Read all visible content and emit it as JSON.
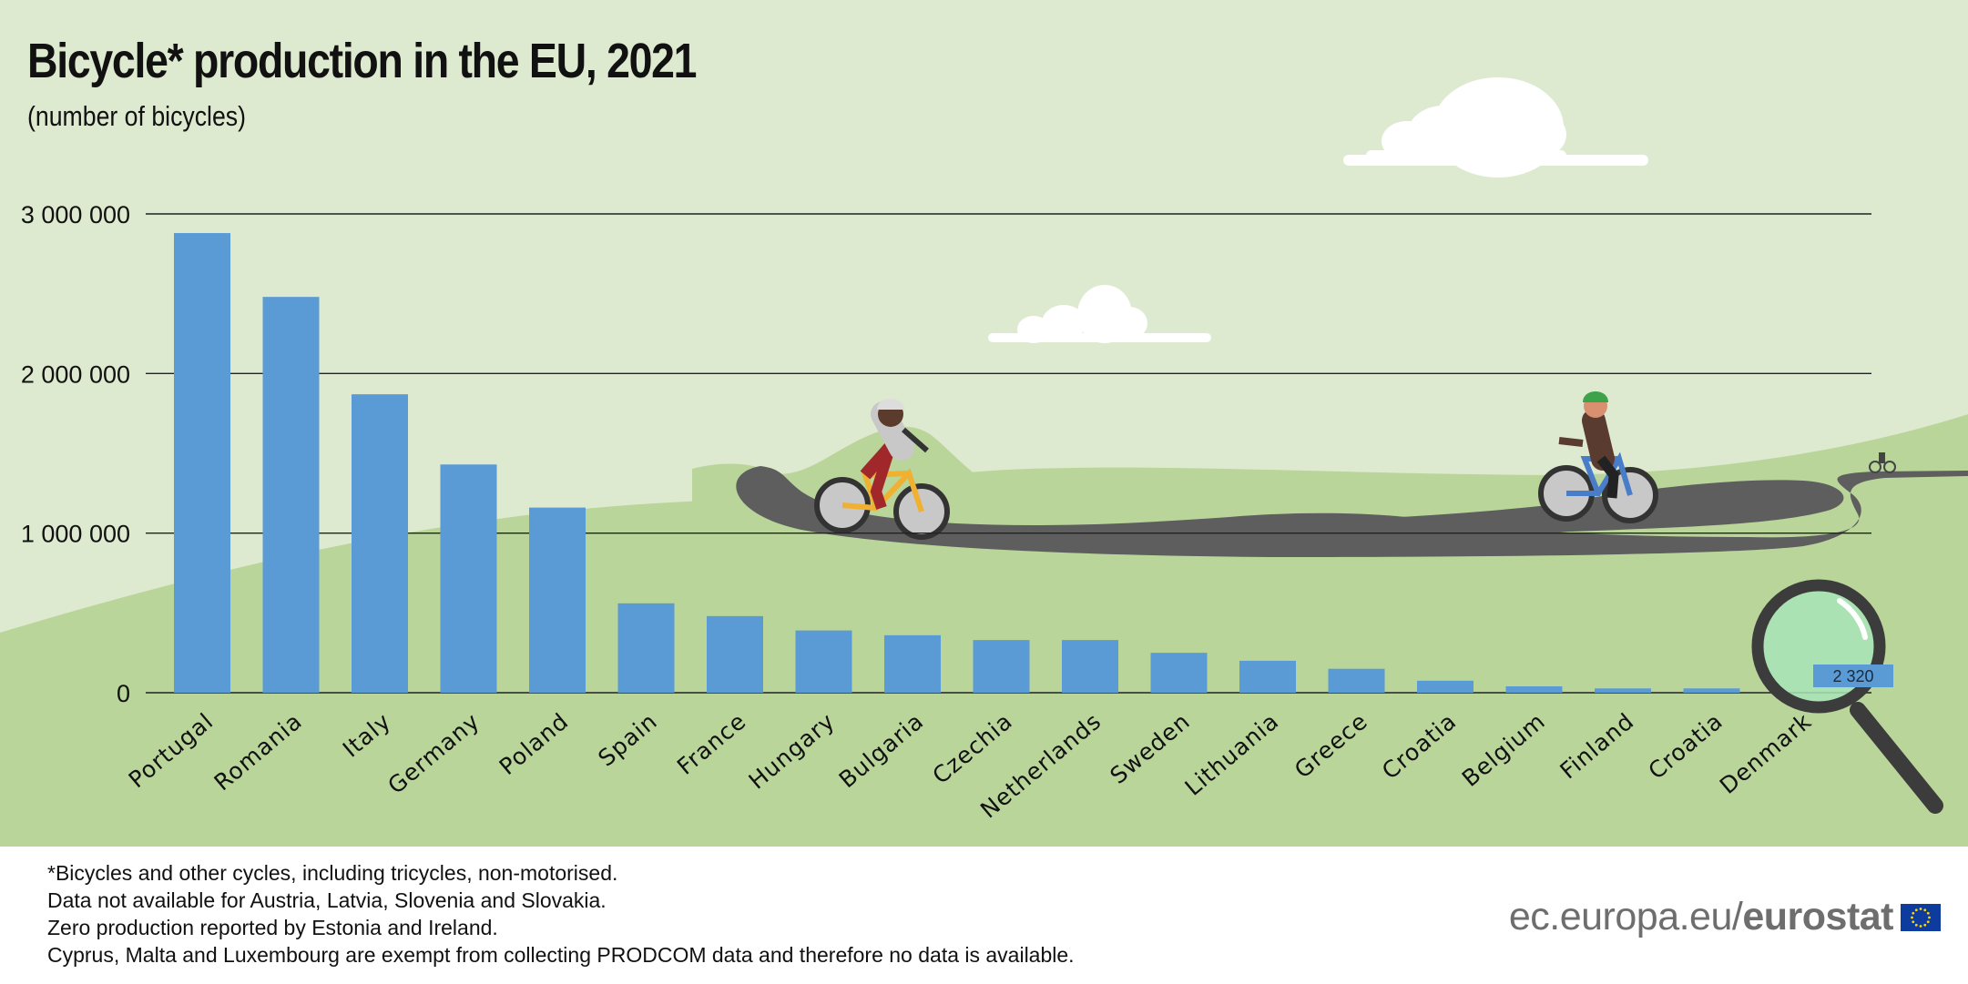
{
  "title": "Bicycle* production in the EU, 2021",
  "subtitle": "(number of bicycles)",
  "footnotes": [
    "*Bicycles and other cycles, including tricycles, non-motorised.",
    "Data not available for Austria, Latvia, Slovenia and Slovakia.",
    "Zero production reported by Estonia and Ireland.",
    "Cyprus, Malta and Luxembourg are exempt from collecting PRODCOM data and therefore no data is available."
  ],
  "brand": {
    "url": "ec.europa.eu/",
    "name": "eurostat"
  },
  "colors": {
    "bar": "#5b9bd5",
    "background_light": "#deeacf",
    "background_hill": "#b9d59a",
    "road": "#5e5e5e",
    "lens": "#a8e4b9"
  },
  "icons": [
    "cloud-icon",
    "cyclist-icon",
    "magnifying-glass-icon",
    "eu-flag-icon"
  ],
  "chart_data": {
    "type": "bar",
    "title": "Bicycle* production in the EU, 2021",
    "subtitle": "(number of bicycles)",
    "xlabel": "",
    "ylabel": "",
    "ylim": [
      0,
      3000000
    ],
    "yticks": [
      0,
      1000000,
      2000000,
      3000000
    ],
    "ytick_labels": [
      "0",
      "1 000 000",
      "2 000 000",
      "3 000 000"
    ],
    "grid": true,
    "legend": "none",
    "categories": [
      "Portugal",
      "Romania",
      "Italy",
      "Germany",
      "Poland",
      "Spain",
      "France",
      "Hungary",
      "Bulgaria",
      "Czechia",
      "Netherlands",
      "Sweden",
      "Lithuania",
      "Greece",
      "Croatia",
      "Belgium",
      "Finland",
      "Croatia",
      "Denmark"
    ],
    "values": [
      2880000,
      2480000,
      1870000,
      1430000,
      1160000,
      560000,
      480000,
      390000,
      360000,
      330000,
      330000,
      250000,
      200000,
      150000,
      75000,
      40000,
      27000,
      27000,
      2320
    ],
    "annotations": [
      {
        "category": "Denmark",
        "value": 2320,
        "label": "2 320"
      }
    ]
  }
}
